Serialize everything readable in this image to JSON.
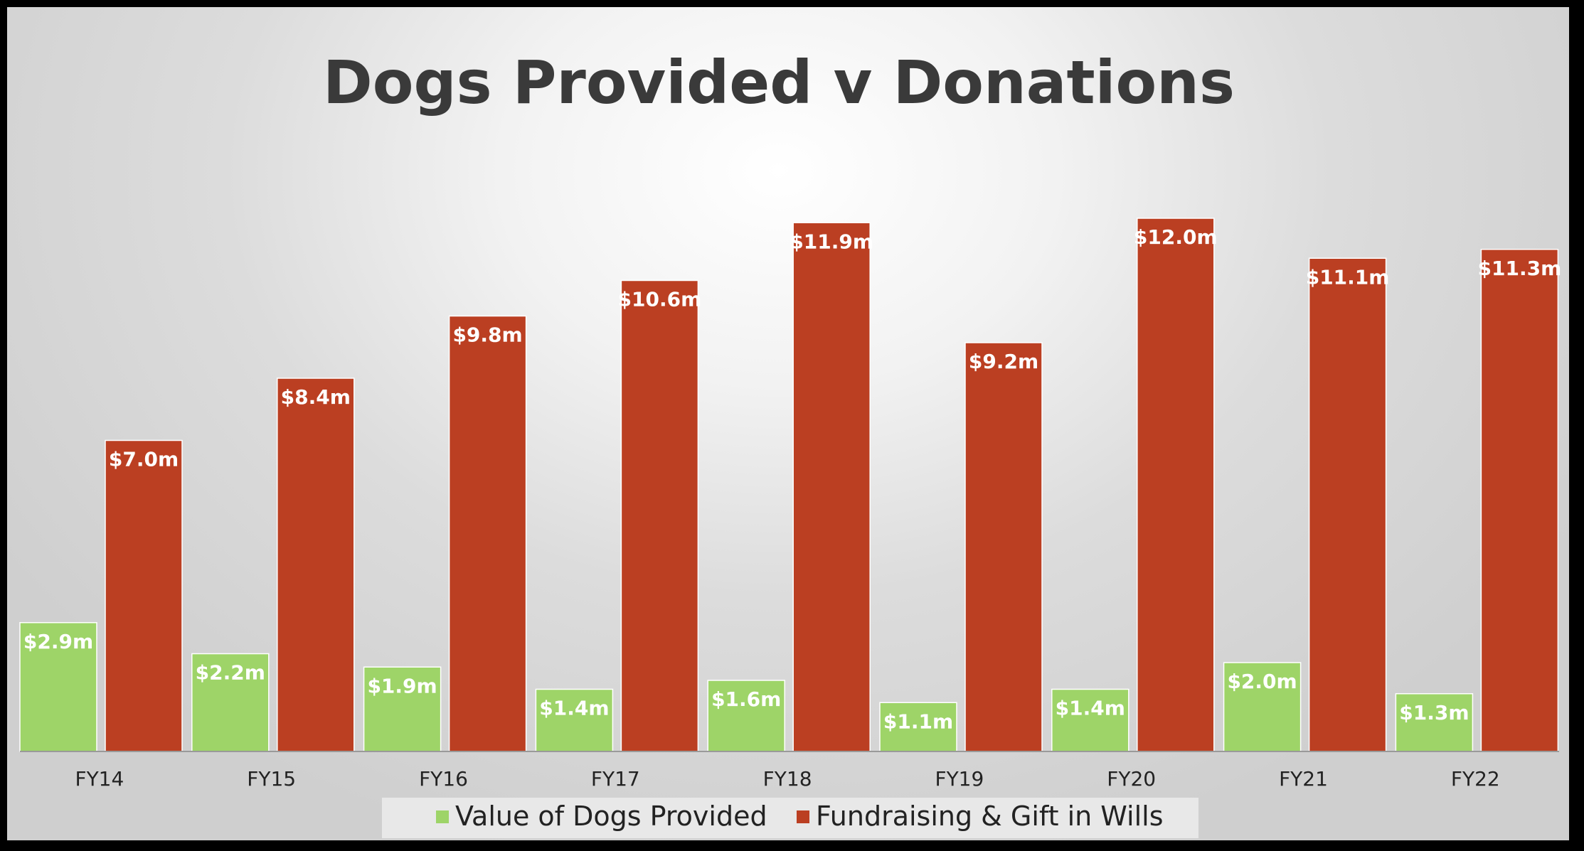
{
  "chart_data": {
    "type": "bar",
    "title": "Dogs Provided v Donations",
    "categories": [
      "FY14",
      "FY15",
      "FY16",
      "FY17",
      "FY18",
      "FY19",
      "FY20",
      "FY21",
      "FY22"
    ],
    "series": [
      {
        "name": "Value of Dogs Provided",
        "color": "#9ed468",
        "values": [
          2.9,
          2.2,
          1.9,
          1.4,
          1.6,
          1.1,
          1.4,
          2.0,
          1.3
        ],
        "labels": [
          "$2.9m",
          "$2.2m",
          "$1.9m",
          "$1.4m",
          "$1.6m",
          "$1.1m",
          "$1.4m",
          "$2.0m",
          "$1.3m"
        ]
      },
      {
        "name": "Fundraising & Gift in Wills",
        "color": "#bb3f22",
        "values": [
          7.0,
          8.4,
          9.8,
          10.6,
          11.9,
          9.2,
          12.0,
          11.1,
          11.3
        ],
        "labels": [
          "$7.0m",
          "$8.4m",
          "$9.8m",
          "$10.6m",
          "$11.9m",
          "$9.2m",
          "$12.0m",
          "$11.1m",
          "$11.3m"
        ]
      }
    ],
    "xlabel": "",
    "ylabel": "",
    "ylim": [
      0,
      12.5
    ],
    "grid": false,
    "legend_position": "bottom"
  }
}
